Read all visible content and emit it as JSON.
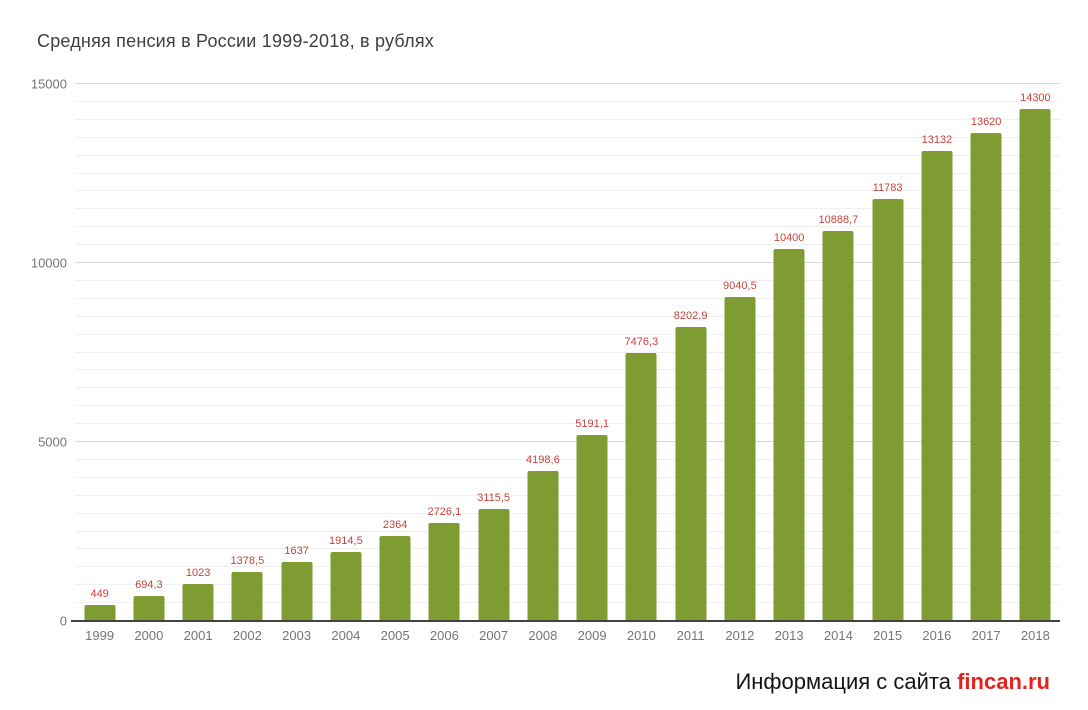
{
  "title": "Средняя пенсия в России 1999-2018, в рублях",
  "footer": {
    "prefix": "Информация с сайта",
    "site": "fincan.ru"
  },
  "colors": {
    "title_color": "#3c4043",
    "bar_color": "#7e9c31",
    "annotation_color": "#c5443c",
    "axis_label_color": "#757575",
    "major_gridline": "#d9d9d9",
    "minor_gridline": "#efefef",
    "baseline_color": "#424242",
    "footer_text_color": "#141414",
    "footer_site_color": "#e42320"
  },
  "chart_data": {
    "type": "bar",
    "title": "Средняя пенсия в России 1999-2018, в рублях",
    "categories": [
      "1999",
      "2000",
      "2001",
      "2002",
      "2003",
      "2004",
      "2005",
      "2006",
      "2007",
      "2008",
      "2009",
      "2010",
      "2011",
      "2012",
      "2013",
      "2014",
      "2015",
      "2016",
      "2017",
      "2018"
    ],
    "values": [
      449,
      694.3,
      1023,
      1378.5,
      1637,
      1914.5,
      2364,
      2726.1,
      3115.5,
      4198.6,
      5191.1,
      7476.3,
      8202.9,
      9040.5,
      10400,
      10888.7,
      11783,
      13132,
      13620,
      14300
    ],
    "labels": [
      "449",
      "694,3",
      "1023",
      "1378,5",
      "1637",
      "1914,5",
      "2364",
      "2726,1",
      "3115,5",
      "4198,6",
      "5191,1",
      "7476,3",
      "8202,9",
      "9040,5",
      "10400",
      "10888,7",
      "11783",
      "13132",
      "13620",
      "14300"
    ],
    "xlabel": "",
    "ylabel": "",
    "ylim": [
      0,
      15000
    ],
    "yticks": [
      0,
      5000,
      10000,
      15000
    ],
    "minor_step": 500,
    "grid": true,
    "legend": "none"
  }
}
